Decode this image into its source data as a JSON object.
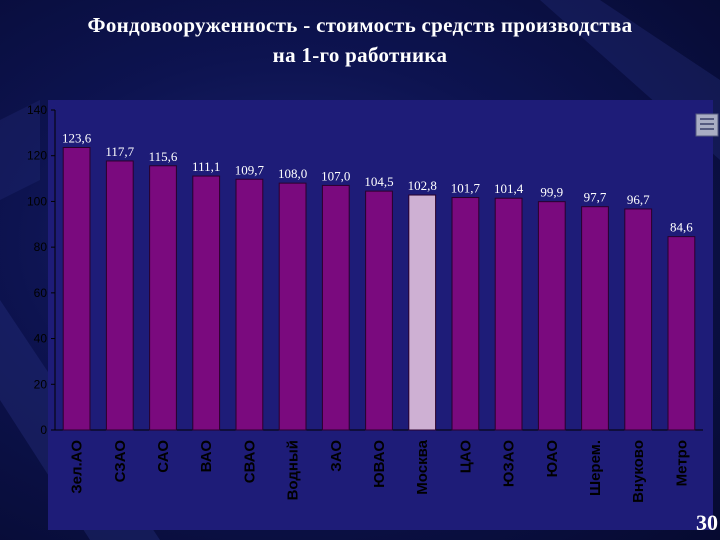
{
  "page": {
    "title_line1": "Фондовооруженность - стоимость средств производства",
    "title_line2": "на 1-го работника",
    "page_number": "30"
  },
  "colors": {
    "bar": "#7a0a7e",
    "bar_border": "#2a002c",
    "highlight_bar": "#d8b8d8",
    "panel": "#1e1c78",
    "axis": "#000000",
    "label_text": "#ffffff",
    "category_text": "#000000"
  },
  "chart_data": {
    "type": "bar",
    "title": "",
    "xlabel": "",
    "ylabel": "",
    "ylim": [
      0,
      140
    ],
    "yticks": [
      0,
      20,
      40,
      60,
      80,
      100,
      120,
      140
    ],
    "grid": false,
    "highlight_category": "Москва",
    "categories": [
      "Зел.АО",
      "СЗАО",
      "САО",
      "ВАО",
      "СВАО",
      "Водный",
      "ЗАО",
      "ЮВАО",
      "Москва",
      "ЦАО",
      "ЮЗАО",
      "ЮАО",
      "Шерем.",
      "Внуково",
      "Метро"
    ],
    "values": [
      123.6,
      117.7,
      115.6,
      111.1,
      109.7,
      108.0,
      107.0,
      104.5,
      102.8,
      101.7,
      101.4,
      99.9,
      97.7,
      96.7,
      84.6
    ],
    "value_labels": [
      "123,6",
      "117,7",
      "115,6",
      "111,1",
      "109,7",
      "108,0",
      "107,0",
      "104,5",
      "102,8",
      "101,7",
      "101,4",
      "99,9",
      "97,7",
      "96,7",
      "84,6"
    ]
  }
}
